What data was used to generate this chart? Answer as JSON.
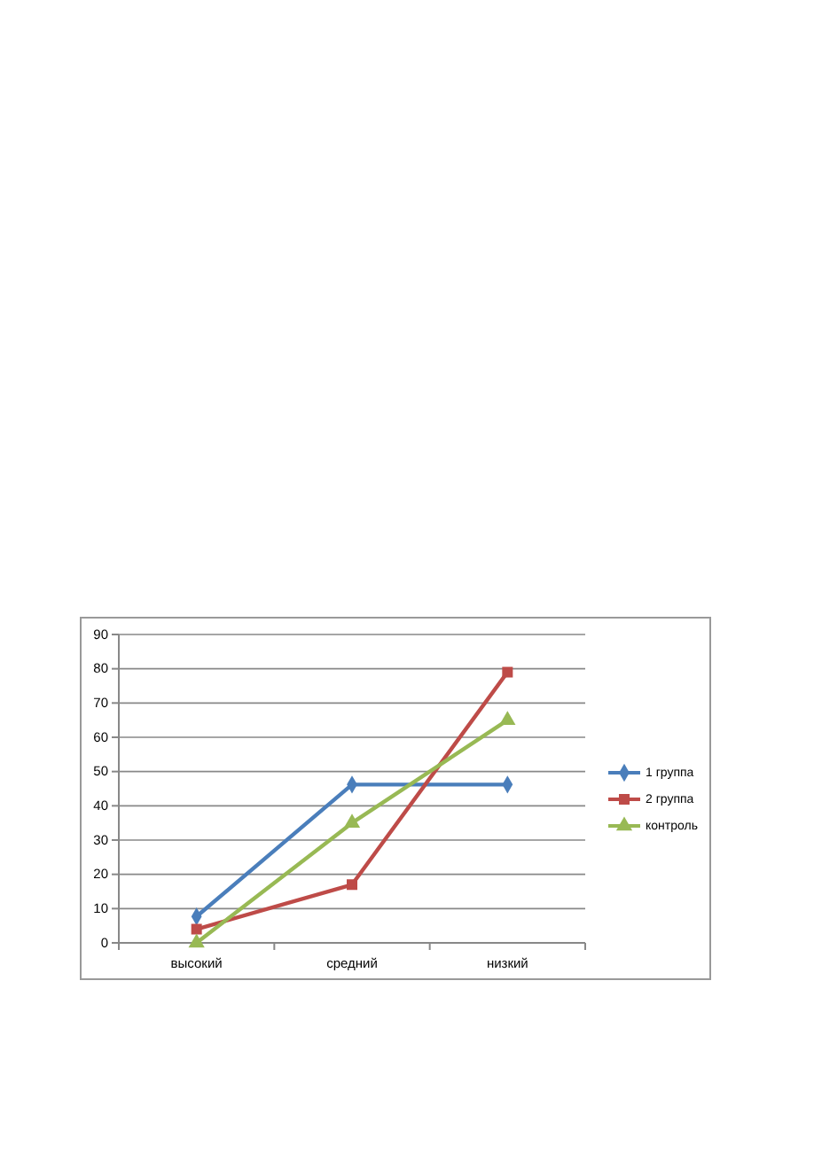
{
  "chart_data": {
    "type": "line",
    "categories": [
      "высокий",
      "средний",
      "низкий"
    ],
    "series": [
      {
        "name": "1 группа",
        "color": "#4a7ebb",
        "marker": "diamond",
        "values": [
          7.7,
          46.2,
          46.2
        ]
      },
      {
        "name": "2 группа",
        "color": "#be4b48",
        "marker": "square",
        "values": [
          4,
          17,
          79
        ]
      },
      {
        "name": "контроль",
        "color": "#98b954",
        "marker": "triangle",
        "values": [
          0,
          35,
          65
        ]
      }
    ],
    "ylim": [
      0,
      90
    ],
    "yticks": [
      0,
      10,
      20,
      30,
      40,
      50,
      60,
      70,
      80,
      90
    ],
    "grid": "y",
    "legend": "right"
  }
}
